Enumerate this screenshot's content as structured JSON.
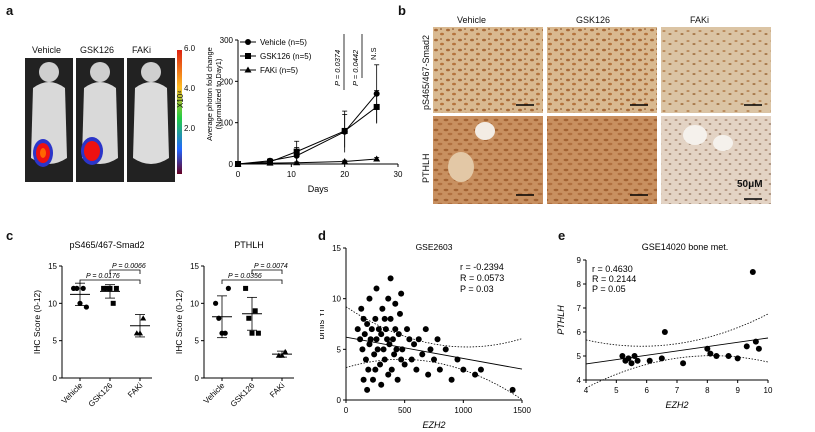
{
  "panels": {
    "a": "a",
    "b": "b",
    "c": "c",
    "d": "d",
    "e": "e"
  },
  "panel_a": {
    "groups": [
      "Vehicle",
      "GSK126",
      "FAKi"
    ],
    "colorbar_ticks": [
      "6.0",
      "4.0",
      "2.0"
    ],
    "colorbar_unit": "X10⁴",
    "chart_data": {
      "type": "line",
      "xlabel": "Days",
      "ylabel": "Average photon fold change (Normalized to Day1)",
      "x": [
        0,
        6,
        11,
        20,
        26
      ],
      "xlim": [
        0,
        30
      ],
      "ylim": [
        0,
        300
      ],
      "xticks": [
        "0",
        "10",
        "20",
        "30"
      ],
      "yticks": [
        "0",
        "100",
        "200",
        "300"
      ],
      "series": [
        {
          "name": "Vehicle (n=5)",
          "values": [
            0,
            8,
            20,
            78,
            170
          ],
          "err": [
            0,
            5,
            20,
            50,
            70
          ]
        },
        {
          "name": "GSK126 (n=5)",
          "values": [
            0,
            5,
            30,
            80,
            138
          ],
          "err": [
            0,
            4,
            25,
            40,
            40
          ]
        },
        {
          "name": "FAKi (n=5)",
          "values": [
            0,
            2,
            3,
            6,
            12
          ],
          "err": [
            0,
            1,
            2,
            3,
            4
          ]
        }
      ],
      "pvalues": [
        "P = 0.0374",
        "P = 0.0442",
        "N.S"
      ]
    }
  },
  "panel_b": {
    "columns": [
      "Vehicle",
      "GSK126",
      "FAKi"
    ],
    "rows": [
      "pS465/467-Smad2",
      "PTHLH"
    ],
    "scale": "50μM"
  },
  "panel_c": {
    "chart_data": [
      {
        "type": "scatter",
        "title": "pS465/467-Smad2",
        "ylabel": "IHC Score (0-12)",
        "categories": [
          "Vehicle",
          "GSK126",
          "FAKi"
        ],
        "ylim": [
          0,
          15
        ],
        "yticks": [
          "0",
          "5",
          "10",
          "15"
        ],
        "points": [
          [
            12,
            12,
            10,
            12,
            9.5
          ],
          [
            12,
            12,
            12,
            10,
            12
          ],
          [
            6,
            6,
            8
          ]
        ],
        "means": [
          11.2,
          11.6,
          7
        ],
        "sd": [
          1.5,
          0.9,
          1.5
        ],
        "pvalues": [
          "P = 0.0066",
          "P = 0.0176"
        ]
      },
      {
        "type": "scatter",
        "title": "PTHLH",
        "ylabel": "IHC Score (0-12)",
        "categories": [
          "Vehicle",
          "GSK126",
          "FAKi"
        ],
        "ylim": [
          0,
          15
        ],
        "yticks": [
          "0",
          "5",
          "10",
          "15"
        ],
        "points": [
          [
            10,
            8,
            6,
            6,
            12
          ],
          [
            12,
            8,
            6,
            9,
            6
          ],
          [
            3,
            3,
            3.5
          ]
        ],
        "means": [
          8.2,
          8.6,
          3.2
        ],
        "sd": [
          2.8,
          2.2,
          0.4
        ],
        "pvalues": [
          "P = 0.0074",
          "P = 0.0356"
        ]
      }
    ]
  },
  "panel_d": {
    "chart_data": {
      "type": "scatter",
      "title": "GSE2603",
      "xlabel": "EZH2",
      "ylabel": "bmfs  Yr",
      "xlim": [
        0,
        1500
      ],
      "ylim": [
        0,
        15
      ],
      "xticks": [
        "0",
        "500",
        "1000",
        "1500"
      ],
      "yticks": [
        "0",
        "5",
        "10",
        "15"
      ],
      "stats": [
        "r = -0.2394",
        "R = 0.0573",
        "P = 0.03"
      ],
      "points": [
        [
          100,
          7
        ],
        [
          120,
          6
        ],
        [
          140,
          5
        ],
        [
          150,
          8
        ],
        [
          160,
          6.5
        ],
        [
          170,
          4
        ],
        [
          180,
          7.5
        ],
        [
          190,
          3
        ],
        [
          200,
          5.5
        ],
        [
          210,
          6
        ],
        [
          220,
          7
        ],
        [
          230,
          2
        ],
        [
          240,
          4.5
        ],
        [
          250,
          8
        ],
        [
          260,
          6
        ],
        [
          270,
          5
        ],
        [
          280,
          7
        ],
        [
          290,
          3.5
        ],
        [
          300,
          6.5
        ],
        [
          310,
          9
        ],
        [
          320,
          5
        ],
        [
          330,
          4
        ],
        [
          340,
          7
        ],
        [
          350,
          6
        ],
        [
          360,
          2.5
        ],
        [
          370,
          5.5
        ],
        [
          380,
          8
        ],
        [
          390,
          3
        ],
        [
          400,
          6
        ],
        [
          410,
          4.5
        ],
        [
          420,
          7
        ],
        [
          430,
          5
        ],
        [
          440,
          2
        ],
        [
          450,
          6.5
        ],
        [
          460,
          8.5
        ],
        [
          470,
          4
        ],
        [
          480,
          5
        ],
        [
          500,
          3.5
        ],
        [
          520,
          7
        ],
        [
          540,
          6
        ],
        [
          560,
          4
        ],
        [
          580,
          5.5
        ],
        [
          600,
          3
        ],
        [
          620,
          6
        ],
        [
          650,
          4.5
        ],
        [
          680,
          7
        ],
        [
          700,
          2.5
        ],
        [
          720,
          5
        ],
        [
          750,
          4
        ],
        [
          780,
          6
        ],
        [
          800,
          3
        ],
        [
          850,
          5
        ],
        [
          900,
          2
        ],
        [
          950,
          4
        ],
        [
          1000,
          3
        ],
        [
          1100,
          2.5
        ],
        [
          1150,
          3
        ],
        [
          1420,
          1
        ],
        [
          130,
          9
        ],
        [
          200,
          10
        ],
        [
          260,
          11
        ],
        [
          380,
          12
        ],
        [
          420,
          9.5
        ],
        [
          470,
          10.5
        ],
        [
          250,
          3
        ],
        [
          300,
          1.5
        ],
        [
          180,
          1
        ],
        [
          150,
          2
        ],
        [
          330,
          8
        ],
        [
          360,
          10
        ]
      ],
      "fit": {
        "slope": -0.0021,
        "intercept": 6.2
      }
    }
  },
  "panel_e": {
    "chart_data": {
      "type": "scatter",
      "title": "GSE14020 bone met.",
      "xlabel": "EZH2",
      "ylabel": "PTHLH",
      "xlim": [
        4,
        10
      ],
      "ylim": [
        4,
        9
      ],
      "xticks": [
        "4",
        "5",
        "6",
        "7",
        "8",
        "9",
        "10"
      ],
      "yticks": [
        "4",
        "5",
        "6",
        "7",
        "8",
        "9"
      ],
      "stats": [
        "r = 0.4630",
        "R = 0.2144",
        "P = 0.05"
      ],
      "points": [
        [
          5.2,
          5.0
        ],
        [
          5.3,
          4.8
        ],
        [
          5.4,
          4.9
        ],
        [
          5.5,
          4.7
        ],
        [
          5.6,
          5.0
        ],
        [
          5.7,
          4.8
        ],
        [
          6.1,
          4.8
        ],
        [
          6.6,
          6.0
        ],
        [
          6.5,
          4.9
        ],
        [
          7.2,
          4.7
        ],
        [
          8.0,
          5.3
        ],
        [
          8.1,
          5.1
        ],
        [
          8.3,
          5.0
        ],
        [
          8.7,
          5.0
        ],
        [
          9.0,
          4.9
        ],
        [
          9.3,
          5.4
        ],
        [
          9.5,
          8.5
        ],
        [
          9.6,
          5.6
        ],
        [
          9.7,
          5.3
        ]
      ],
      "fit": {
        "slope": 0.18,
        "intercept": 3.95
      }
    }
  }
}
